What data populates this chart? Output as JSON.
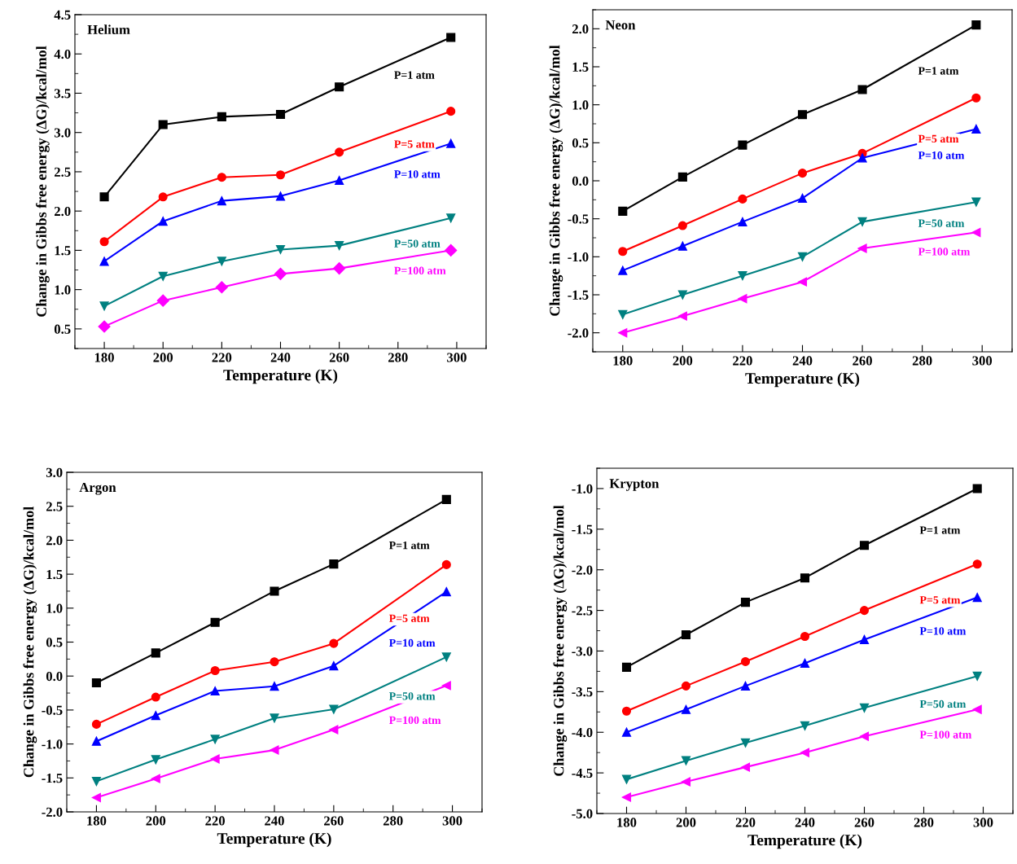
{
  "chart_data": [
    {
      "type": "line",
      "title": "Helium",
      "xlabel": "Temperature (K)",
      "ylabel": "Change in Gibbs free energy (ΔG)/kcal/mol",
      "x": [
        180,
        200,
        220,
        240,
        260,
        298
      ],
      "xlim": [
        170,
        310
      ],
      "xticks": [
        180,
        200,
        220,
        240,
        260,
        280,
        300
      ],
      "ylim": [
        0.25,
        4.5
      ],
      "yticks": [
        {
          "value": 0.5,
          "label": "0.5"
        },
        {
          "value": 1,
          "label": "1.0"
        },
        {
          "value": 1.5,
          "label": "1.5"
        },
        {
          "value": 2,
          "label": "2.0"
        },
        {
          "value": 2.5,
          "label": "2.5"
        },
        {
          "value": 3,
          "label": "3.0"
        },
        {
          "value": 3.5,
          "label": "3.5"
        },
        {
          "value": 4,
          "label": "4.0"
        },
        {
          "value": 4.5,
          "label": "4.5"
        }
      ],
      "grid": false,
      "legend": false,
      "line_style": "solid",
      "series": [
        {
          "name": "P=1 atm",
          "color": "#000000",
          "marker": "square",
          "values": [
            2.18,
            3.1,
            3.2,
            3.23,
            3.58,
            4.21
          ]
        },
        {
          "name": "P=5 atm",
          "color": "#ff0000",
          "marker": "circle",
          "values": [
            1.61,
            2.18,
            2.43,
            2.46,
            2.75,
            3.27
          ]
        },
        {
          "name": "P=10 atm",
          "color": "#0000ff",
          "marker": "triangle",
          "values": [
            1.36,
            1.87,
            2.13,
            2.19,
            2.39,
            2.86
          ]
        },
        {
          "name": "P=50 atm",
          "color": "#008080",
          "marker": "triangle_down",
          "values": [
            0.79,
            1.17,
            1.36,
            1.51,
            1.56,
            1.91
          ]
        },
        {
          "name": "P=100 atm",
          "color": "#ff00ff",
          "marker": "diamond",
          "values": [
            0.53,
            0.86,
            1.03,
            1.2,
            1.27,
            1.5
          ]
        }
      ]
    },
    {
      "type": "line",
      "title": "Neon",
      "xlabel": "Temperature (K)",
      "ylabel": "Change in Gibbs free energy (ΔG)/kcal/mol",
      "x": [
        180,
        200,
        220,
        240,
        260,
        298
      ],
      "xlim": [
        170,
        310
      ],
      "xticks": [
        180,
        200,
        220,
        240,
        260,
        280,
        300
      ],
      "ylim": [
        -2.25,
        2.25
      ],
      "yticks": [
        {
          "value": -2,
          "label": "-2.0"
        },
        {
          "value": -1.5,
          "label": "-1.5"
        },
        {
          "value": -1,
          "label": "-1.0"
        },
        {
          "value": -0.5,
          "label": "-0.5"
        },
        {
          "value": 0,
          "label": "0.0"
        },
        {
          "value": 0.5,
          "label": "0.5"
        },
        {
          "value": 1,
          "label": "1.0"
        },
        {
          "value": 1.5,
          "label": "1.5"
        },
        {
          "value": 2,
          "label": "2.0"
        }
      ],
      "grid": false,
      "legend": false,
      "line_style": "solid",
      "series": [
        {
          "name": "P=1 atm",
          "color": "#000000",
          "marker": "square",
          "values": [
            -0.4,
            0.05,
            0.47,
            0.87,
            1.2,
            2.05
          ]
        },
        {
          "name": "P=5 atm",
          "color": "#ff0000",
          "marker": "circle",
          "values": [
            -0.93,
            -0.59,
            -0.24,
            0.1,
            0.36,
            1.09
          ]
        },
        {
          "name": "P=10 atm",
          "color": "#0000ff",
          "marker": "triangle",
          "values": [
            -1.18,
            -0.86,
            -0.54,
            -0.23,
            0.3,
            0.68
          ]
        },
        {
          "name": "P=50 atm",
          "color": "#008080",
          "marker": "triangle_down",
          "values": [
            -1.76,
            -1.5,
            -1.25,
            -1.0,
            -0.54,
            -0.28
          ]
        },
        {
          "name": "P=100 atm",
          "color": "#ff00ff",
          "marker": "triangle_left",
          "values": [
            -2.0,
            -1.78,
            -1.55,
            -1.33,
            -0.89,
            -0.68
          ]
        }
      ]
    },
    {
      "type": "line",
      "title": "Argon",
      "xlabel": "Temperature (K)",
      "ylabel": "Change in Gibbs free energy (ΔG)/kcal/mol",
      "x": [
        180,
        200,
        220,
        240,
        260,
        298
      ],
      "xlim": [
        170,
        310
      ],
      "xticks": [
        180,
        200,
        220,
        240,
        260,
        280,
        300
      ],
      "ylim": [
        -2.0,
        3.0
      ],
      "yticks": [
        {
          "value": -2,
          "label": "-2.0"
        },
        {
          "value": -1.5,
          "label": "-1.5"
        },
        {
          "value": -1,
          "label": "-1.0"
        },
        {
          "value": -0.5,
          "label": "-0.5"
        },
        {
          "value": 0,
          "label": "0.0"
        },
        {
          "value": 0.5,
          "label": "0.5"
        },
        {
          "value": 1,
          "label": "1.0"
        },
        {
          "value": 1.5,
          "label": "1.5"
        },
        {
          "value": 2,
          "label": "2.0"
        },
        {
          "value": 2.5,
          "label": "2.5"
        },
        {
          "value": 3,
          "label": "3.0"
        }
      ],
      "grid": false,
      "legend": false,
      "line_style": "solid",
      "series": [
        {
          "name": "P=1 atm",
          "color": "#000000",
          "marker": "square",
          "values": [
            -0.1,
            0.34,
            0.79,
            1.25,
            1.65,
            2.6
          ]
        },
        {
          "name": "P=5 atm",
          "color": "#ff0000",
          "marker": "circle",
          "values": [
            -0.71,
            -0.31,
            0.08,
            0.21,
            0.48,
            1.64
          ]
        },
        {
          "name": "P=10 atm",
          "color": "#0000ff",
          "marker": "triangle",
          "values": [
            -0.96,
            -0.58,
            -0.22,
            -0.15,
            0.15,
            1.24
          ]
        },
        {
          "name": "P=50 atm",
          "color": "#008080",
          "marker": "triangle_down",
          "values": [
            -1.55,
            -1.23,
            -0.93,
            -0.62,
            -0.49,
            0.28
          ]
        },
        {
          "name": "P=100 atm",
          "color": "#ff00ff",
          "marker": "triangle_left",
          "values": [
            -1.79,
            -1.51,
            -1.22,
            -1.09,
            -0.79,
            -0.14
          ]
        }
      ]
    },
    {
      "type": "line",
      "title": "Krypton",
      "xlabel": "Temperature (K)",
      "ylabel": "Change in Gibbs free energy (ΔG)/kcal/mol",
      "x": [
        180,
        200,
        220,
        240,
        260,
        298
      ],
      "xlim": [
        170,
        310
      ],
      "xticks": [
        180,
        200,
        220,
        240,
        260,
        280,
        300
      ],
      "ylim": [
        -5.0,
        -0.75
      ],
      "yticks": [
        {
          "value": -5,
          "label": "-5.0"
        },
        {
          "value": -4.5,
          "label": "-4.5"
        },
        {
          "value": -4,
          "label": "-4.0"
        },
        {
          "value": -3.5,
          "label": "-3.5"
        },
        {
          "value": -3,
          "label": "-3.0"
        },
        {
          "value": -2.5,
          "label": "-2.5"
        },
        {
          "value": -2,
          "label": "-2.0"
        },
        {
          "value": -1.5,
          "label": "-1.5"
        },
        {
          "value": -1,
          "label": "-1.0"
        }
      ],
      "grid": false,
      "legend": false,
      "line_style": "solid",
      "series": [
        {
          "name": "P=1 atm",
          "color": "#000000",
          "marker": "square",
          "values": [
            -3.2,
            -2.8,
            -2.4,
            -2.1,
            -1.7,
            -1.0
          ]
        },
        {
          "name": "P=5 atm",
          "color": "#ff0000",
          "marker": "circle",
          "values": [
            -3.74,
            -3.43,
            -3.13,
            -2.82,
            -2.5,
            -1.93
          ]
        },
        {
          "name": "P=10 atm",
          "color": "#0000ff",
          "marker": "triangle",
          "values": [
            -4.0,
            -3.72,
            -3.43,
            -3.15,
            -2.86,
            -2.34
          ]
        },
        {
          "name": "P=50 atm",
          "color": "#008080",
          "marker": "triangle_down",
          "values": [
            -4.58,
            -4.35,
            -4.13,
            -3.92,
            -3.7,
            -3.31
          ]
        },
        {
          "name": "P=100 atm",
          "color": "#ff00ff",
          "marker": "triangle_left",
          "values": [
            -4.8,
            -4.61,
            -4.43,
            -4.25,
            -4.05,
            -3.72
          ]
        }
      ]
    }
  ]
}
